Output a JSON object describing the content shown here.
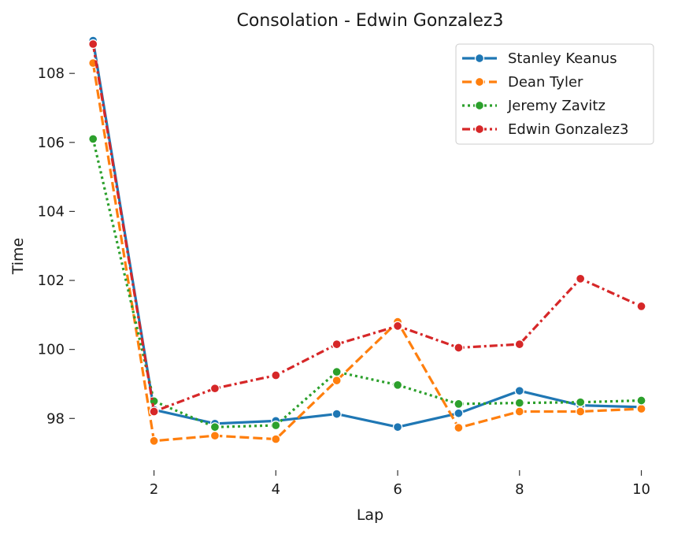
{
  "chart_data": {
    "type": "line",
    "title": "Consolation - Edwin Gonzalez3",
    "xlabel": "Lap",
    "ylabel": "Time",
    "x": [
      1,
      2,
      3,
      4,
      5,
      6,
      7,
      8,
      9,
      10
    ],
    "xticks": [
      2,
      4,
      6,
      8,
      10
    ],
    "yticks": [
      98,
      100,
      102,
      104,
      106,
      108
    ],
    "xlim": [
      0.7,
      10.2
    ],
    "ylim": [
      96.5,
      109.1
    ],
    "grid": false,
    "legend_position": "top-right",
    "series": [
      {
        "name": "Stanley Keanus",
        "color": "#1f77b4",
        "dash": "solid",
        "values": [
          108.95,
          98.25,
          97.85,
          97.93,
          98.13,
          97.75,
          98.15,
          98.8,
          98.38,
          98.33
        ]
      },
      {
        "name": "Dean Tyler",
        "color": "#ff7f0e",
        "dash": "dashed",
        "values": [
          108.3,
          97.35,
          97.5,
          97.4,
          99.1,
          100.8,
          97.73,
          98.2,
          98.2,
          98.28
        ]
      },
      {
        "name": "Jeremy Zavitz",
        "color": "#2ca02c",
        "dash": "dotted",
        "values": [
          106.1,
          98.5,
          97.75,
          97.8,
          99.35,
          98.97,
          98.42,
          98.45,
          98.47,
          98.52
        ]
      },
      {
        "name": "Edwin Gonzalez3",
        "color": "#d62728",
        "dash": "dashdot",
        "values": [
          108.85,
          98.2,
          98.87,
          99.25,
          100.15,
          100.68,
          100.05,
          100.15,
          102.05,
          101.25
        ]
      }
    ]
  }
}
